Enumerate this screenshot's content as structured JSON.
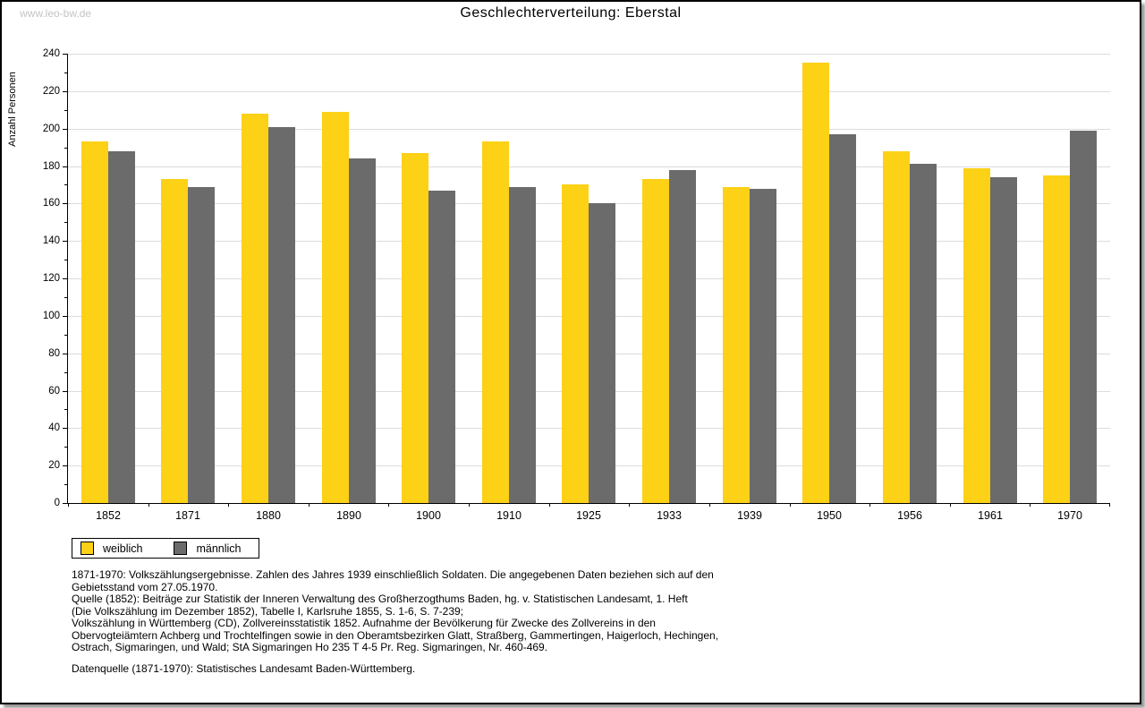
{
  "watermark": "www.leo-bw.de",
  "chart_data": {
    "type": "bar",
    "title": "Geschlechterverteilung:  Eberstal",
    "ylabel": "Anzahl Personen",
    "xlabel": "",
    "ylim": [
      0,
      240
    ],
    "ytick_step": 20,
    "grid": true,
    "legend_position": "bottom-left",
    "categories": [
      "1852",
      "1871",
      "1880",
      "1890",
      "1900",
      "1910",
      "1925",
      "1933",
      "1939",
      "1950",
      "1956",
      "1961",
      "1970"
    ],
    "series": [
      {
        "name": "weiblich",
        "color": "#fcd116",
        "values": [
          193,
          173,
          208,
          209,
          187,
          193,
          170,
          173,
          169,
          235,
          188,
          179,
          175
        ]
      },
      {
        "name": "männlich",
        "color": "#6b6b6b",
        "values": [
          188,
          169,
          201,
          184,
          167,
          169,
          160,
          178,
          168,
          197,
          181,
          174,
          199
        ]
      }
    ]
  },
  "notes": {
    "sources": "1871-1970: Volkszählungsergebnisse. Zahlen des Jahres 1939 einschließlich Soldaten. Die angegebenen Daten beziehen sich auf den\nGebietsstand vom 27.05.1970.\nQuelle (1852): Beiträge zur Statistik der Inneren Verwaltung des Großherzogthums Baden, hg. v. Statistischen Landesamt, 1. Heft\n(Die Volkszählung im Dezember 1852), Tabelle I, Karlsruhe 1855, S. 1-6, S. 7-239;\nVolkszählung in Württemberg (CD), Zollvereinsstatistik 1852. Aufnahme der Bevölkerung für Zwecke des Zollvereins in den\nObervogteiämtern Achberg und Trochtelfingen sowie in den Oberamtsbezirken Glatt, Straßberg, Gammertingen, Haigerloch, Hechingen,\nOstrach, Sigmaringen, und Wald; StA Sigmaringen Ho 235 T 4-5 Pr. Reg. Sigmaringen, Nr. 460-469.",
    "data_source": "Datenquelle (1871-1970): Statistisches Landesamt Baden-Württemberg."
  }
}
